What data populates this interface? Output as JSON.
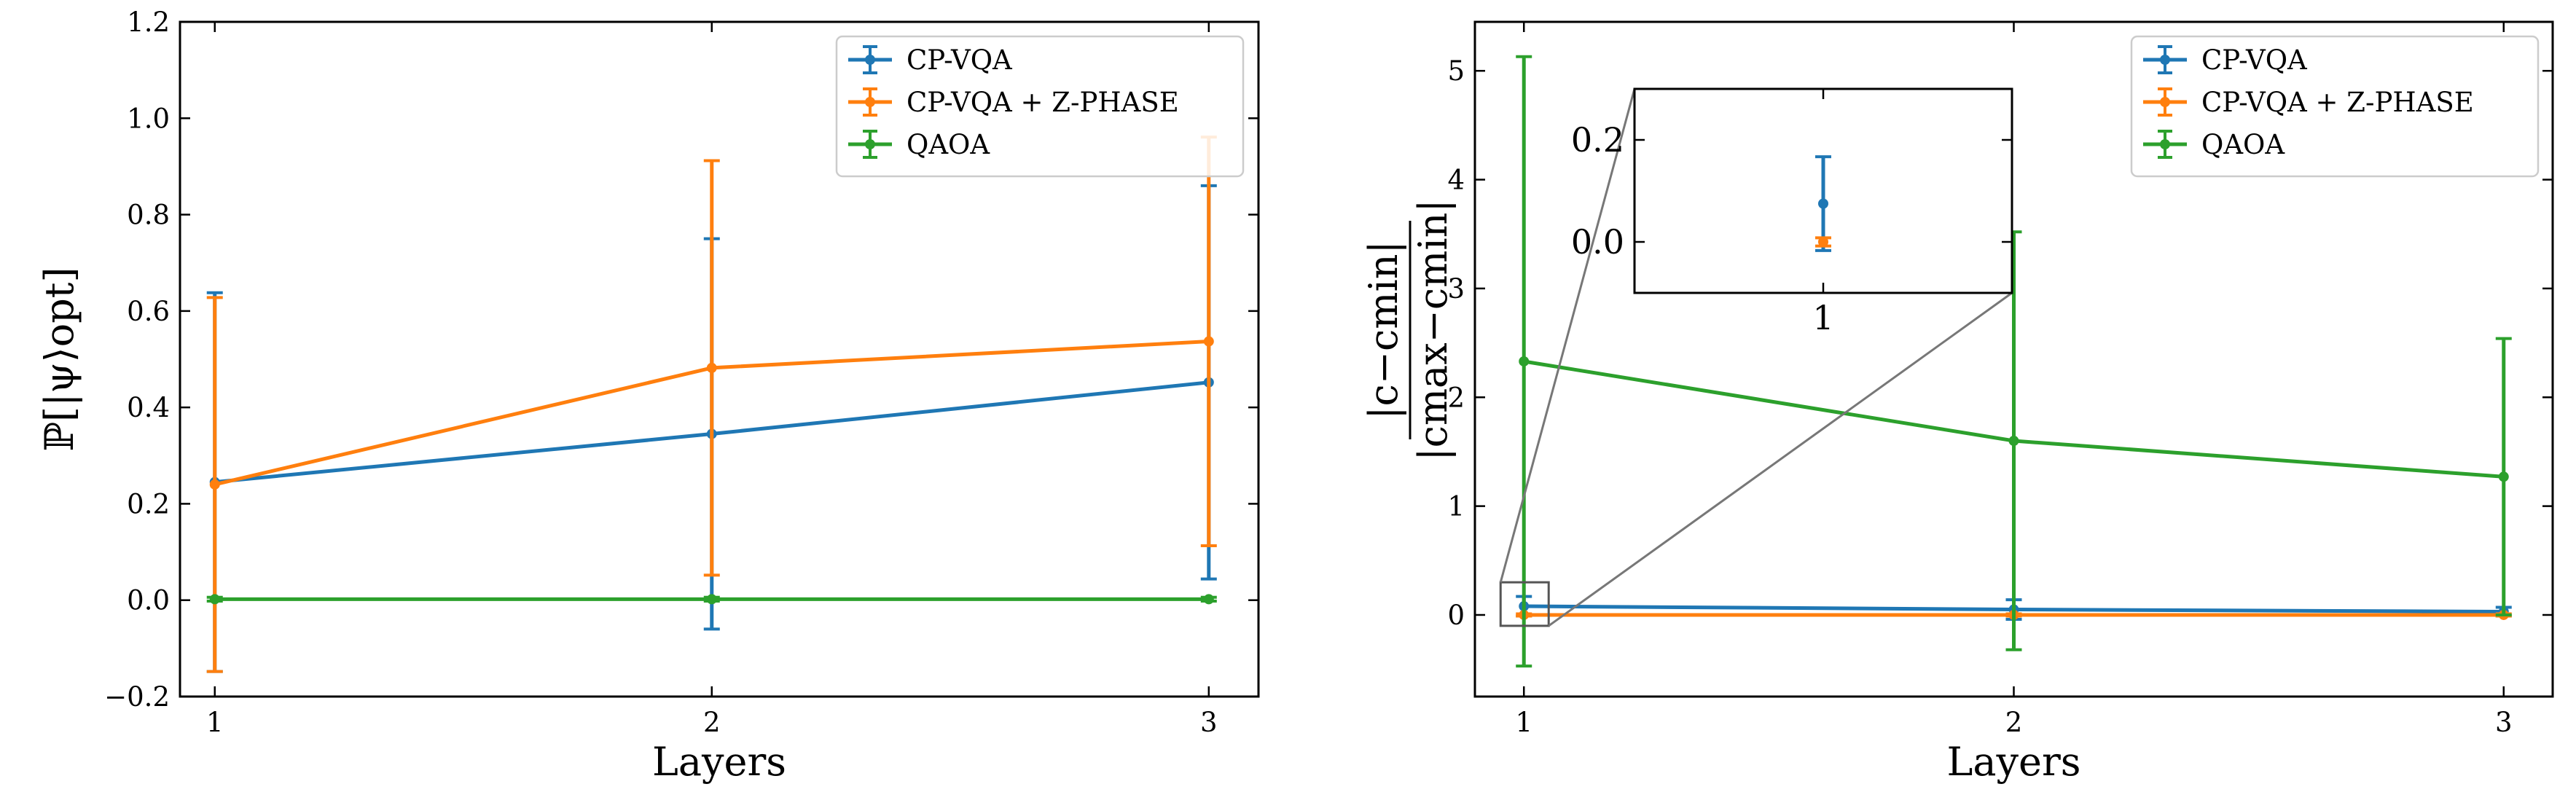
{
  "colors": {
    "CP-VQA": "#1f77b4",
    "CP-VQA + Z-PHASE": "#ff7f0e",
    "QAOA": "#2ca02c"
  },
  "chart_data": [
    {
      "type": "line",
      "xlabel": "Layers",
      "ylabel": "ℙ[|ψ⟩opt]",
      "x": [
        1,
        2,
        3
      ],
      "xticks": [
        "1",
        "2",
        "3"
      ],
      "xlim": [
        0.93,
        3.1
      ],
      "ylim": [
        -0.2,
        1.2
      ],
      "yticks": [
        "−0.2",
        "0.0",
        "0.2",
        "0.4",
        "0.6",
        "0.8",
        "1.0",
        "1.2"
      ],
      "legend": "top-right",
      "series": [
        {
          "name": "CP-VQA",
          "values": [
            0.245,
            0.345,
            0.452
          ],
          "err": [
            0.393,
            0.405,
            0.408
          ]
        },
        {
          "name": "CP-VQA + Z-PHASE",
          "values": [
            0.24,
            0.482,
            0.537
          ],
          "err": [
            0.388,
            0.43,
            0.424
          ]
        },
        {
          "name": "QAOA",
          "values": [
            0.002,
            0.002,
            0.002
          ],
          "err": [
            0.004,
            0.004,
            0.004
          ]
        }
      ]
    },
    {
      "type": "line",
      "xlabel": "Layers",
      "ylabel": "|c−cmin| / |cmax−cmin|",
      "x": [
        1,
        2,
        3
      ],
      "xticks": [
        "1",
        "2",
        "3"
      ],
      "xlim": [
        0.9,
        3.1
      ],
      "ylim": [
        -0.75,
        5.45
      ],
      "yticks": [
        "0",
        "1",
        "2",
        "3",
        "4",
        "5"
      ],
      "legend": "top-right",
      "series": [
        {
          "name": "CP-VQA",
          "values": [
            0.08,
            0.05,
            0.03
          ],
          "err": [
            0.09,
            0.09,
            0.04
          ]
        },
        {
          "name": "CP-VQA + Z-PHASE",
          "values": [
            0.0,
            0.0,
            0.0
          ],
          "err": [
            0.01,
            0.01,
            0.01
          ]
        },
        {
          "name": "QAOA",
          "values": [
            2.33,
            1.6,
            1.27
          ],
          "err": [
            2.8,
            1.92,
            1.27
          ]
        }
      ],
      "inset": {
        "xticks": [
          "1"
        ],
        "yticks": [
          "0.0",
          "0.2"
        ],
        "ylim": [
          -0.1,
          0.3
        ],
        "series": [
          {
            "name": "CP-VQA",
            "value": 0.075,
            "err": 0.092
          },
          {
            "name": "CP-VQA + Z-PHASE",
            "value": 0.0,
            "err": 0.008
          }
        ]
      }
    }
  ]
}
